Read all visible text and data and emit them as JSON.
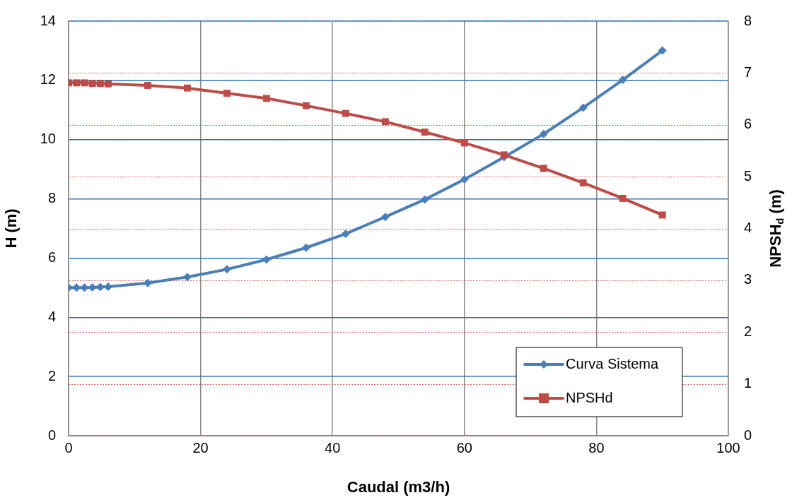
{
  "chart_data": {
    "type": "line",
    "xlabel": "Caudal (m3/h)",
    "ylabel": "H (m)",
    "y2label": "NPSH$_{d}$ (m)",
    "xlim": [
      0,
      100
    ],
    "xticks": [
      0,
      20,
      40,
      60,
      80,
      100
    ],
    "ylim": [
      0,
      14
    ],
    "yticks": [
      0,
      2,
      4,
      6,
      8,
      10,
      12,
      14
    ],
    "y2lim": [
      0,
      8
    ],
    "y2ticks": [
      0,
      1,
      2,
      3,
      4,
      5,
      6,
      7,
      8
    ],
    "grid": true,
    "legend": "bottom right",
    "line_style": "solid",
    "series": [
      {
        "name": "Curva Sistema",
        "color": "#4a7ebb",
        "marker": "diamond",
        "x": [
          0,
          1.2,
          2.4,
          3.6,
          4.8,
          6,
          12,
          18,
          24,
          30,
          36,
          42,
          48,
          54,
          60,
          66,
          72,
          78,
          84,
          90
        ],
        "values": [
          5.0,
          5.0,
          5.0,
          5.01,
          5.02,
          5.03,
          5.16,
          5.36,
          5.62,
          5.95,
          6.35,
          6.82,
          7.39,
          7.98,
          8.66,
          9.41,
          10.19,
          11.08,
          12.02,
          13.01
        ]
      },
      {
        "name": "NPSHd",
        "color": "#be4b48",
        "marker": "square",
        "axis": "y2",
        "x": [
          0,
          1.2,
          2.4,
          3.6,
          4.8,
          6,
          12,
          18,
          24,
          30,
          36,
          42,
          48,
          54,
          60,
          66,
          72,
          78,
          84,
          90
        ],
        "values": [
          6.81,
          6.81,
          6.81,
          6.8,
          6.8,
          6.79,
          6.76,
          6.71,
          6.61,
          6.51,
          6.37,
          6.22,
          6.06,
          5.86,
          5.65,
          5.42,
          5.16,
          4.88,
          4.58,
          4.26
        ]
      }
    ]
  }
}
